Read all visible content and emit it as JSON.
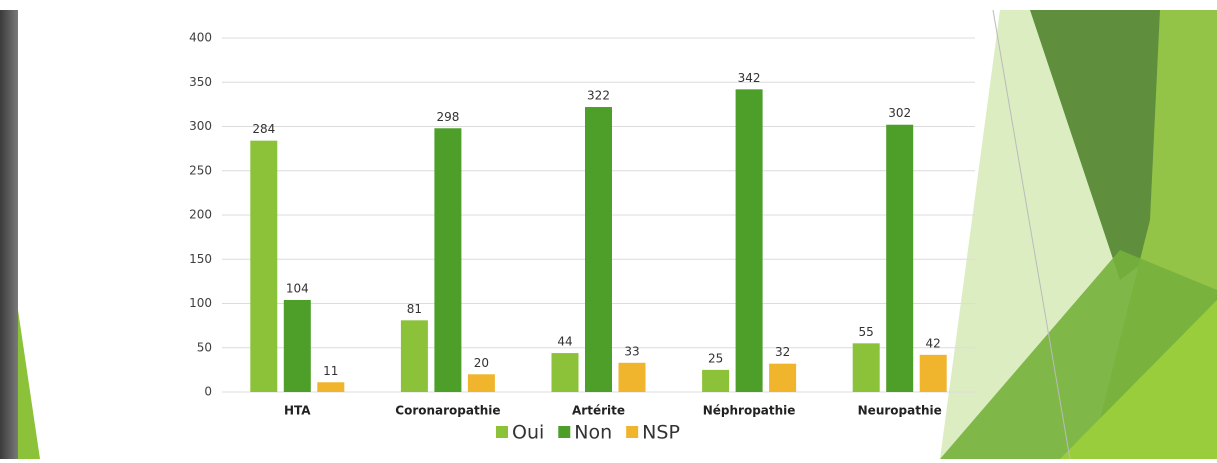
{
  "chart_data": {
    "type": "bar",
    "categories": [
      "HTA",
      "Coronaropathie",
      "Artérite",
      "Néphropathie",
      "Neuropathie"
    ],
    "series": [
      {
        "name": "Oui",
        "color": "#8cc23a",
        "values": [
          284,
          81,
          44,
          25,
          55
        ]
      },
      {
        "name": "Non",
        "color": "#4e9e2a",
        "values": [
          104,
          298,
          322,
          342,
          302
        ]
      },
      {
        "name": "NSP",
        "color": "#f0b52c",
        "values": [
          11,
          20,
          33,
          32,
          42
        ]
      }
    ],
    "ylim": [
      0,
      400
    ],
    "yticks": [
      0,
      50,
      100,
      150,
      200,
      250,
      300,
      350,
      400
    ],
    "grid": true,
    "legend": "bottom"
  }
}
